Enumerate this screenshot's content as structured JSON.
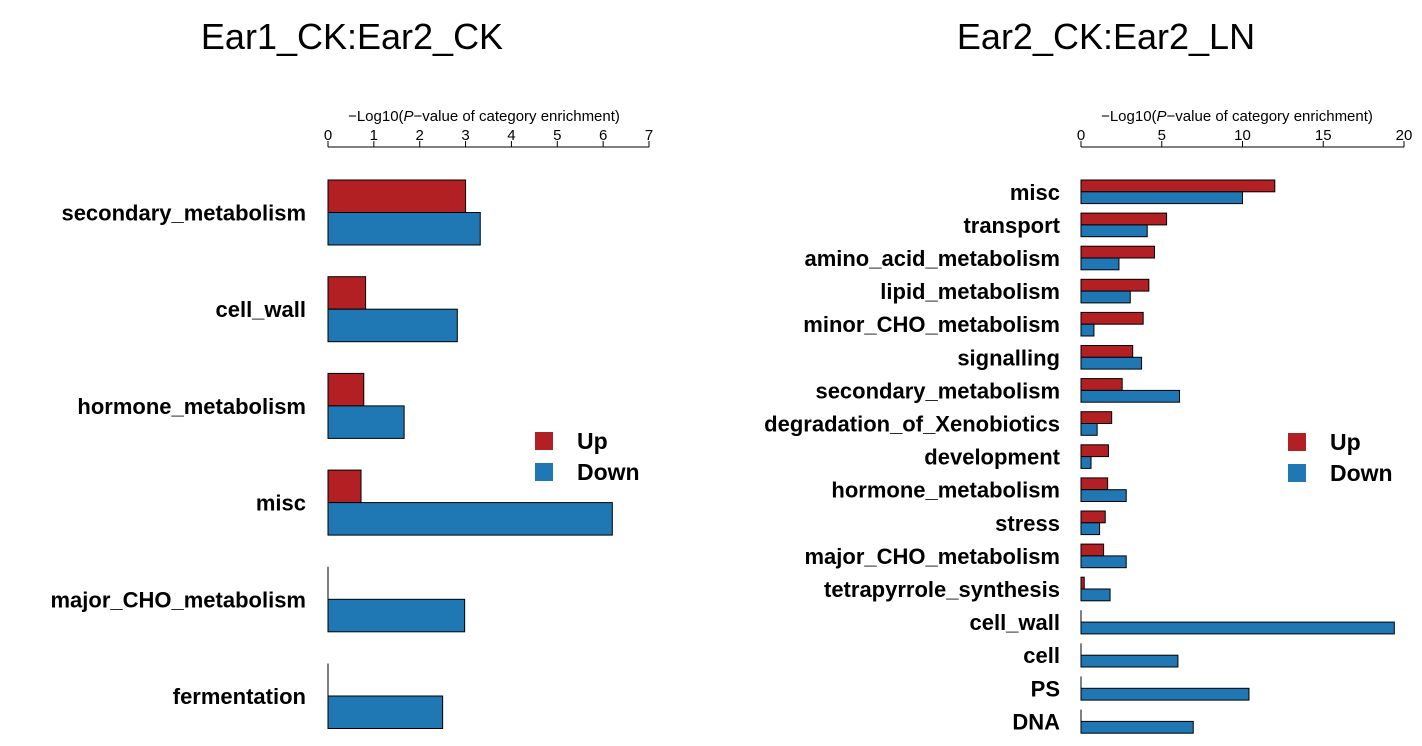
{
  "chart_data": [
    {
      "type": "bar",
      "orientation": "horizontal",
      "title": "Ear1_CK:Ear2_CK",
      "xlabel_prefix": "−Log10(",
      "xlabel_italic": "P",
      "xlabel_suffix": "−value of category enrichment)",
      "xlim": [
        0,
        7
      ],
      "xticks": [
        0,
        1,
        2,
        3,
        4,
        5,
        6,
        7
      ],
      "axis_position": "top",
      "categories": [
        "secondary_metabolism",
        "cell_wall",
        "hormone_metabolism",
        "misc",
        "major_CHO_metabolism",
        "fermentation"
      ],
      "series": [
        {
          "name": "Up",
          "color": "#b22024",
          "values": [
            3.0,
            0.82,
            0.78,
            0.72,
            0.0,
            0.0
          ]
        },
        {
          "name": "Down",
          "color": "#1f77b4",
          "values": [
            3.32,
            2.82,
            1.66,
            6.2,
            2.98,
            2.5
          ]
        }
      ],
      "legend": {
        "position": "center-right",
        "entries": [
          "Up",
          "Down"
        ]
      },
      "grid": false
    },
    {
      "type": "bar",
      "orientation": "horizontal",
      "title": "Ear2_CK:Ear2_LN",
      "xlabel_prefix": "−Log10(",
      "xlabel_italic": "P",
      "xlabel_suffix": "−value of category enrichment)",
      "xlim": [
        0,
        20
      ],
      "xticks": [
        0,
        5,
        10,
        15,
        20
      ],
      "axis_position": "top",
      "categories": [
        "misc",
        "transport",
        "amino_acid_metabolism",
        "lipid_metabolism",
        "minor_CHO_metabolism",
        "signalling",
        "secondary_metabolism",
        "degradation_of_Xenobiotics",
        "development",
        "hormone_metabolism",
        "stress",
        "major_CHO_metabolism",
        "tetrapyrrole_synthesis",
        "cell_wall",
        "cell",
        "PS",
        "DNA"
      ],
      "series": [
        {
          "name": "Up",
          "color": "#b22024",
          "values": [
            12.0,
            5.3,
            4.55,
            4.2,
            3.85,
            3.2,
            2.55,
            1.9,
            1.7,
            1.65,
            1.5,
            1.4,
            0.2,
            0.0,
            0.0,
            0.0,
            0.0
          ]
        },
        {
          "name": "Down",
          "color": "#1f77b4",
          "values": [
            10.0,
            4.1,
            2.35,
            3.05,
            0.8,
            3.75,
            6.1,
            1.0,
            0.62,
            2.8,
            1.15,
            2.8,
            1.8,
            19.4,
            6.0,
            10.4,
            6.95
          ]
        }
      ],
      "legend": {
        "position": "center-right",
        "entries": [
          "Up",
          "Down"
        ]
      },
      "grid": false
    }
  ]
}
